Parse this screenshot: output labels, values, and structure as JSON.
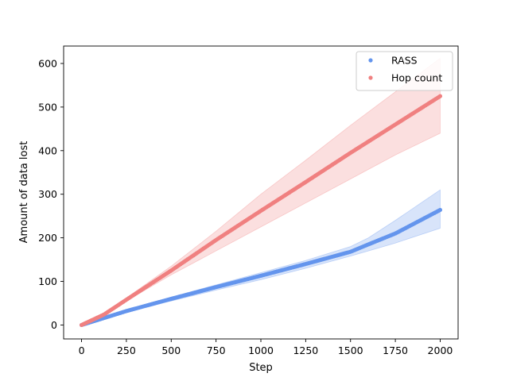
{
  "chart_data": {
    "type": "scatter",
    "title": "",
    "xlabel": "Step",
    "ylabel": "Amount of data lost",
    "xlim": [
      -100,
      2100
    ],
    "ylim": [
      -32,
      640
    ],
    "x_ticks": [
      0,
      250,
      500,
      750,
      1000,
      1250,
      1500,
      1750,
      2000
    ],
    "y_ticks": [
      0,
      100,
      200,
      300,
      400,
      500,
      600
    ],
    "grid": false,
    "legend_position": "top-right",
    "series": [
      {
        "name": "RASS",
        "color": "#6495ed",
        "band_color": "#6495ed",
        "x": [
          0,
          250,
          500,
          750,
          1000,
          1250,
          1500,
          1600,
          1750,
          2000
        ],
        "y": [
          0,
          32,
          60,
          87,
          113,
          140,
          168,
          185,
          210,
          264
        ],
        "band_lower": [
          0,
          30,
          55,
          80,
          104,
          130,
          158,
          170,
          188,
          222
        ],
        "band_upper": [
          0,
          35,
          64,
          92,
          120,
          148,
          180,
          200,
          240,
          310
        ]
      },
      {
        "name": "Hop count",
        "color": "#f08080",
        "band_color": "#f08080",
        "x": [
          0,
          125,
          250,
          500,
          750,
          1000,
          1250,
          1500,
          1750,
          2000
        ],
        "y": [
          0,
          24,
          58,
          125,
          195,
          262,
          328,
          395,
          460,
          525
        ],
        "band_lower": [
          0,
          23,
          55,
          115,
          170,
          225,
          280,
          335,
          390,
          440
        ],
        "band_upper": [
          0,
          26,
          62,
          135,
          215,
          300,
          378,
          458,
          535,
          612
        ]
      }
    ]
  }
}
